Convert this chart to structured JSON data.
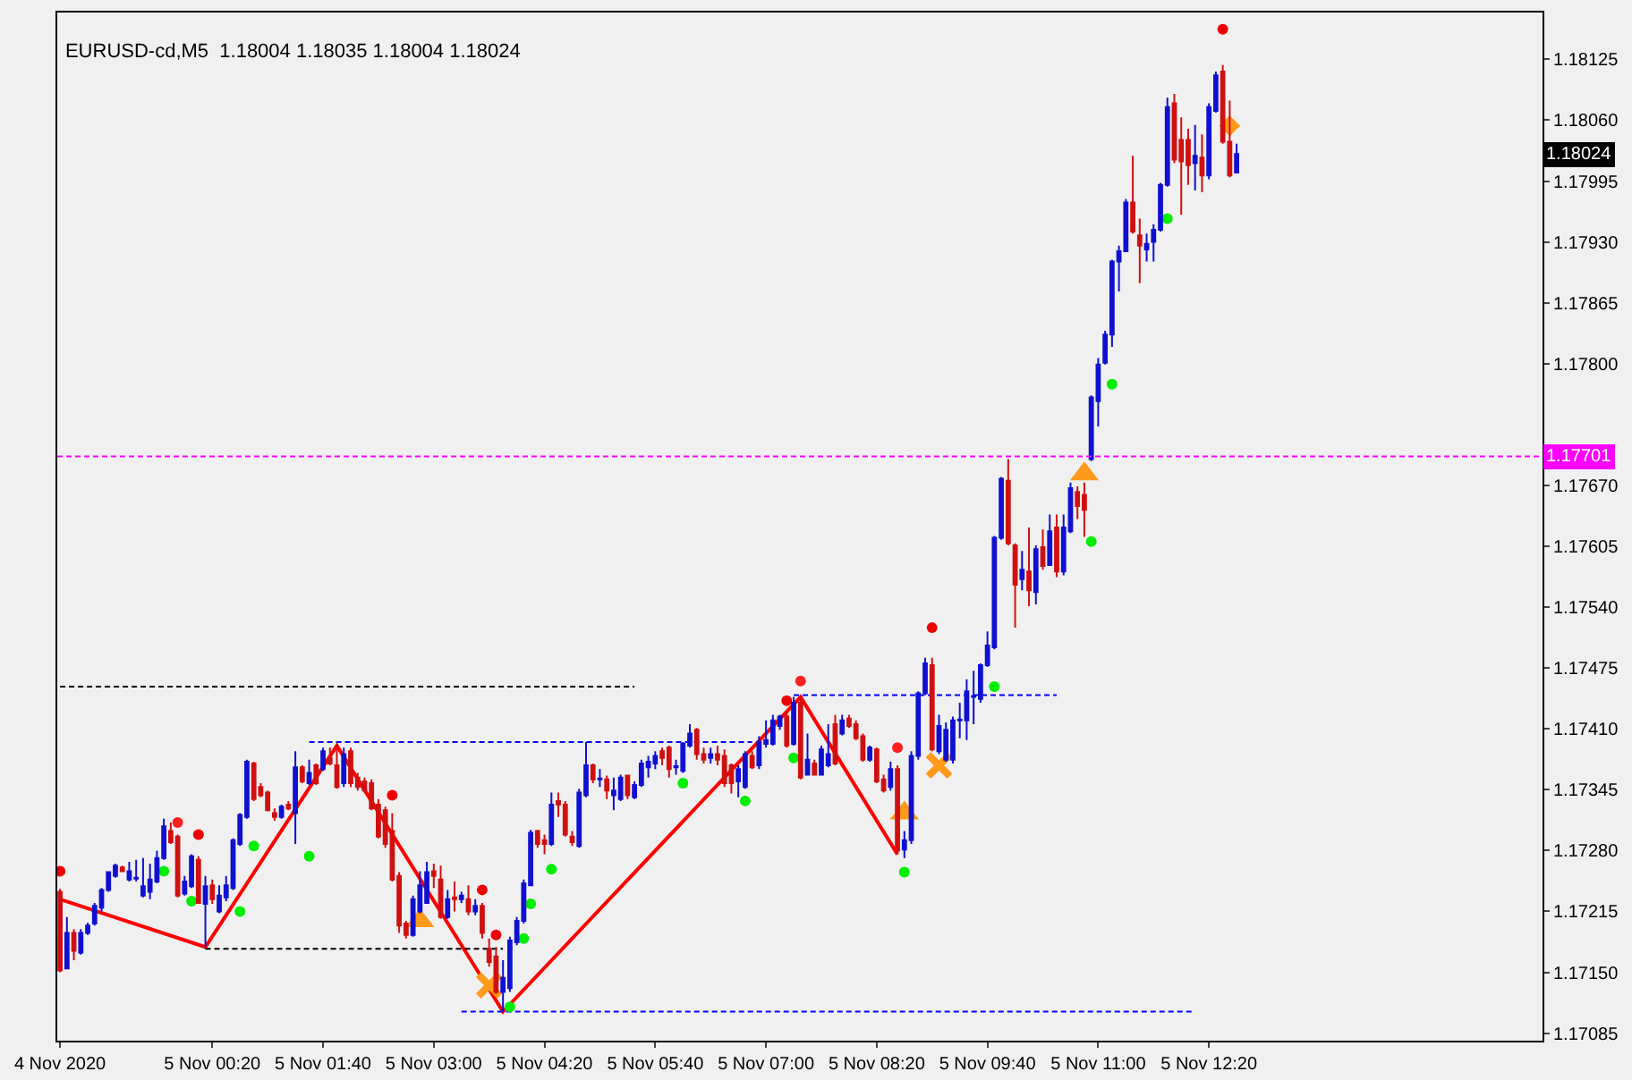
{
  "chart_data": {
    "type": "candlestick",
    "title": "EURUSD-cd,M5  1.18004 1.18035 1.18004 1.18024",
    "colors": [
      "#d01010",
      "#1010d0",
      "#d01010",
      "#1010d0",
      "#1010d0",
      "#1010d0",
      "#1010d0",
      "#1010d0",
      "#1010d0",
      "#d01010",
      "#1010d0",
      "#1010d0",
      "#1010d0",
      "#1010d0",
      "#1010d0",
      "#1010d0",
      "#d01010",
      "#d01010",
      "#1010d0",
      "#1010d0",
      "#d01010",
      "#1010d0",
      "#d01010",
      "#1010d0",
      "#1010d0",
      "#1010d0",
      "#1010d0",
      "#1010d0",
      "#d01010",
      "#d01010",
      "#d01010",
      "#d01010",
      "#1010d0",
      "#d01010",
      "#1010d0",
      "#d01010",
      "#1010d0",
      "#d01010",
      "#1010d0",
      "#d01010",
      "#d01010",
      "#1010d0",
      "#d01010",
      "#d01010",
      "#d01010",
      "#d01010",
      "#d01010",
      "#d01010",
      "#d01010",
      "#d01010",
      "#d01010",
      "#1010d0",
      "#1010d0",
      "#1010d0",
      "#d01010",
      "#d01010",
      "#1010d0",
      "#d01010",
      "#1010d0",
      "#d01010",
      "#1010d0",
      "#d01010",
      "#d01010",
      "#d01010",
      "#1010d0",
      "#1010d0",
      "#1010d0",
      "#1010d0",
      "#1010d0",
      "#d01010",
      "#d01010",
      "#1010d0",
      "#d01010",
      "#d01010",
      "#d01010",
      "#1010d0",
      "#1010d0",
      "#d01010",
      "#1010d0",
      "#d01010",
      "#1010d0",
      "#1010d0",
      "#d01010",
      "#1010d0",
      "#1010d0",
      "#1010d0",
      "#1010d0",
      "#d01010",
      "#d01010",
      "#1010d0",
      "#1010d0",
      "#1010d0",
      "#d01010",
      "#d01010",
      "#1010d0",
      "#d01010",
      "#d01010",
      "#d01010",
      "#1010d0",
      "#1010d0",
      "#d01010",
      "#1010d0",
      "#1010d0",
      "#1010d0",
      "#1010d0",
      "#d01010",
      "#1010d0",
      "#d01010",
      "#1010d0",
      "#d01010",
      "#1010d0",
      "#1010d0",
      "#d01010",
      "#1010d0",
      "#d01010",
      "#d01010",
      "#d01010",
      "#1010d0",
      "#d01010",
      "#d01010",
      "#1010d0",
      "#d01010",
      "#1010d0",
      "#1010d0",
      "#1010d0",
      "#1010d0",
      "#d01010",
      "#1010d0",
      "#1010d0",
      "#1010d0",
      "#1010d0",
      "#1010d0",
      "#1010d0",
      "#1010d0",
      "#1010d0",
      "#1010d0",
      "#1010d0",
      "#d01010",
      "#d01010",
      "#1010d0",
      "#d01010",
      "#1010d0",
      "#d01010",
      "#1010d0",
      "#d01010",
      "#1010d0",
      "#1010d0",
      "#d01010",
      "#d01010",
      "#1010d0",
      "#1010d0",
      "#1010d0",
      "#1010d0",
      "#1010d0",
      "#1010d0",
      "#d01010",
      "#d01010",
      "#1010d0",
      "#1010d0",
      "#1010d0",
      "#1010d0",
      "#d01010",
      "#d01010",
      "#d01010",
      "#1010d0",
      "#d01010",
      "#1010d0",
      "#1010d0",
      "#d01010",
      "#d01010",
      "#1010d0"
    ],
    "x": [
      "2020-11-04T22:30",
      "2020-11-04T22:35",
      "2020-11-04T22:40",
      "2020-11-04T22:45",
      "2020-11-04T22:50",
      "2020-11-04T22:55",
      "2020-11-04T23:00",
      "2020-11-04T23:05",
      "2020-11-04T23:10",
      "2020-11-04T23:15",
      "2020-11-04T23:20",
      "2020-11-04T23:25",
      "2020-11-04T23:30",
      "2020-11-04T23:35",
      "2020-11-04T23:40",
      "2020-11-04T23:45",
      "2020-11-04T23:50",
      "2020-11-04T23:55",
      "2020-11-05T00:00",
      "2020-11-05T00:05",
      "2020-11-05T00:10",
      "2020-11-05T00:15",
      "2020-11-05T00:20",
      "2020-11-05T00:25",
      "2020-11-05T00:30",
      "2020-11-05T00:35",
      "2020-11-05T00:40",
      "2020-11-05T00:45",
      "2020-11-05T00:50",
      "2020-11-05T00:55",
      "2020-11-05T01:00",
      "2020-11-05T01:05",
      "2020-11-05T01:10",
      "2020-11-05T01:15",
      "2020-11-05T01:20",
      "2020-11-05T01:25",
      "2020-11-05T01:30",
      "2020-11-05T01:35",
      "2020-11-05T01:40",
      "2020-11-05T01:45",
      "2020-11-05T01:50",
      "2020-11-05T01:55",
      "2020-11-05T02:00",
      "2020-11-05T02:05",
      "2020-11-05T02:10",
      "2020-11-05T02:15",
      "2020-11-05T02:20",
      "2020-11-05T02:25",
      "2020-11-05T02:30",
      "2020-11-05T02:35",
      "2020-11-05T02:40",
      "2020-11-05T02:45",
      "2020-11-05T02:50",
      "2020-11-05T02:55",
      "2020-11-05T03:00",
      "2020-11-05T03:05",
      "2020-11-05T03:10",
      "2020-11-05T03:15",
      "2020-11-05T03:20",
      "2020-11-05T03:25",
      "2020-11-05T03:30",
      "2020-11-05T03:35",
      "2020-11-05T03:40",
      "2020-11-05T03:45",
      "2020-11-05T03:50",
      "2020-11-05T03:55",
      "2020-11-05T04:00",
      "2020-11-05T04:05",
      "2020-11-05T04:10",
      "2020-11-05T04:15",
      "2020-11-05T04:20",
      "2020-11-05T04:25",
      "2020-11-05T04:30",
      "2020-11-05T04:35",
      "2020-11-05T04:40",
      "2020-11-05T04:45",
      "2020-11-05T04:50",
      "2020-11-05T04:55",
      "2020-11-05T05:00",
      "2020-11-05T05:05",
      "2020-11-05T05:10",
      "2020-11-05T05:15",
      "2020-11-05T05:20",
      "2020-11-05T05:25",
      "2020-11-05T05:30",
      "2020-11-05T05:35",
      "2020-11-05T05:40",
      "2020-11-05T05:45",
      "2020-11-05T05:50",
      "2020-11-05T05:55",
      "2020-11-05T06:00",
      "2020-11-05T06:05",
      "2020-11-05T06:10",
      "2020-11-05T06:15",
      "2020-11-05T06:20",
      "2020-11-05T06:25",
      "2020-11-05T06:30",
      "2020-11-05T06:35",
      "2020-11-05T06:40",
      "2020-11-05T06:45",
      "2020-11-05T06:50",
      "2020-11-05T06:55",
      "2020-11-05T07:00",
      "2020-11-05T07:05",
      "2020-11-05T07:10",
      "2020-11-05T07:15",
      "2020-11-05T07:20",
      "2020-11-05T07:25",
      "2020-11-05T07:30",
      "2020-11-05T07:35",
      "2020-11-05T07:40",
      "2020-11-05T07:45",
      "2020-11-05T07:50",
      "2020-11-05T07:55",
      "2020-11-05T08:00",
      "2020-11-05T08:05",
      "2020-11-05T08:10",
      "2020-11-05T08:15",
      "2020-11-05T08:20",
      "2020-11-05T08:25",
      "2020-11-05T08:30",
      "2020-11-05T08:35",
      "2020-11-05T08:40",
      "2020-11-05T08:45",
      "2020-11-05T08:50",
      "2020-11-05T08:55",
      "2020-11-05T09:00",
      "2020-11-05T09:05",
      "2020-11-05T09:10",
      "2020-11-05T09:15",
      "2020-11-05T09:20",
      "2020-11-05T09:25",
      "2020-11-05T09:30",
      "2020-11-05T09:35",
      "2020-11-05T09:40",
      "2020-11-05T09:45",
      "2020-11-05T09:50",
      "2020-11-05T09:55",
      "2020-11-05T10:00",
      "2020-11-05T10:05",
      "2020-11-05T10:10",
      "2020-11-05T10:15",
      "2020-11-05T10:20",
      "2020-11-05T10:25",
      "2020-11-05T10:30",
      "2020-11-05T10:35",
      "2020-11-05T10:40",
      "2020-11-05T10:45",
      "2020-11-05T10:50",
      "2020-11-05T10:55",
      "2020-11-05T11:00",
      "2020-11-05T11:05",
      "2020-11-05T11:10",
      "2020-11-05T11:15",
      "2020-11-05T11:20",
      "2020-11-05T11:25",
      "2020-11-05T11:30",
      "2020-11-05T11:35",
      "2020-11-05T11:40",
      "2020-11-05T11:45",
      "2020-11-05T11:50",
      "2020-11-05T11:55",
      "2020-11-05T12:00",
      "2020-11-05T12:05",
      "2020-11-05T12:10",
      "2020-11-05T12:15",
      "2020-11-05T12:20",
      "2020-11-05T12:25",
      "2020-11-05T12:30",
      "2020-11-05T12:35",
      "2020-11-05T12:40"
    ],
    "ohlc": [
      [
        1.17236,
        1.17239,
        1.1715,
        1.17152
      ],
      [
        1.17154,
        1.17209,
        1.17154,
        1.17192
      ],
      [
        1.17192,
        1.17196,
        1.17163,
        1.17173
      ],
      [
        1.17171,
        1.17196,
        1.17169,
        1.17192
      ],
      [
        1.17192,
        1.17203,
        1.1719,
        1.172
      ],
      [
        1.17202,
        1.17224,
        1.172,
        1.17221
      ],
      [
        1.17219,
        1.1724,
        1.17215,
        1.17238
      ],
      [
        1.17238,
        1.17258,
        1.17236,
        1.17257
      ],
      [
        1.17253,
        1.17266,
        1.17251,
        1.17264
      ],
      [
        1.17262,
        1.17264,
        1.17257,
        1.17258
      ],
      [
        1.17249,
        1.17268,
        1.17247,
        1.17258
      ],
      [
        1.1725,
        1.1727,
        1.17247,
        1.17251
      ],
      [
        1.17232,
        1.17272,
        1.1723,
        1.17242
      ],
      [
        1.17236,
        1.17266,
        1.17228,
        1.17249
      ],
      [
        1.17247,
        1.1728,
        1.17245,
        1.17272
      ],
      [
        1.17272,
        1.17314,
        1.1727,
        1.17306
      ],
      [
        1.17301,
        1.1731,
        1.17287,
        1.17289
      ],
      [
        1.17295,
        1.17297,
        1.1723,
        1.17232
      ],
      [
        1.17234,
        1.17253,
        1.17232,
        1.17247
      ],
      [
        1.17242,
        1.17276,
        1.1724,
        1.17274
      ],
      [
        1.1727,
        1.17274,
        1.17223,
        1.17224
      ],
      [
        1.17223,
        1.17253,
        1.17177,
        1.17242
      ],
      [
        1.17243,
        1.17249,
        1.17223,
        1.17228
      ],
      [
        1.17215,
        1.17243,
        1.17213,
        1.17232
      ],
      [
        1.1723,
        1.17253,
        1.17226,
        1.17243
      ],
      [
        1.1724,
        1.17293,
        1.17238,
        1.17291
      ],
      [
        1.17287,
        1.1732,
        1.17285,
        1.17318
      ],
      [
        1.17316,
        1.17377,
        1.17314,
        1.17375
      ],
      [
        1.17373,
        1.17375,
        1.17333,
        1.17335
      ],
      [
        1.17348,
        1.17352,
        1.17337,
        1.17339
      ],
      [
        1.17342,
        1.17344,
        1.17322,
        1.17323
      ],
      [
        1.1732,
        1.17325,
        1.17312,
        1.17316
      ],
      [
        1.17316,
        1.17329,
        1.17314,
        1.17327
      ],
      [
        1.17329,
        1.17333,
        1.17323,
        1.17325
      ],
      [
        1.1732,
        1.17386,
        1.17287,
        1.17369
      ],
      [
        1.17369,
        1.17371,
        1.17352,
        1.17354
      ],
      [
        1.17352,
        1.17377,
        1.1735,
        1.17363
      ],
      [
        1.17371,
        1.17373,
        1.1735,
        1.17352
      ],
      [
        1.17367,
        1.1739,
        1.17365,
        1.17386
      ],
      [
        1.17379,
        1.1739,
        1.17371,
        1.17373
      ],
      [
        1.17371,
        1.17394,
        1.17346,
        1.17348
      ],
      [
        1.17352,
        1.1739,
        1.17348,
        1.17383
      ],
      [
        1.17386,
        1.1739,
        1.17348,
        1.17352
      ],
      [
        1.17358,
        1.17363,
        1.17344,
        1.17348
      ],
      [
        1.17354,
        1.17358,
        1.17342,
        1.17344
      ],
      [
        1.17352,
        1.17356,
        1.17323,
        1.17325
      ],
      [
        1.17329,
        1.17335,
        1.17293,
        1.17295
      ],
      [
        1.17323,
        1.17327,
        1.17283,
        1.17287
      ],
      [
        1.17301,
        1.1732,
        1.17247,
        1.17249
      ],
      [
        1.17253,
        1.17257,
        1.17192,
        1.172
      ],
      [
        1.17202,
        1.17205,
        1.17186,
        1.1719
      ],
      [
        1.1719,
        1.17232,
        1.17188,
        1.17228
      ],
      [
        1.17215,
        1.17258,
        1.17213,
        1.17243
      ],
      [
        1.17224,
        1.17268,
        1.17223,
        1.17257
      ],
      [
        1.17258,
        1.17266,
        1.1724,
        1.17253
      ],
      [
        1.17249,
        1.17264,
        1.17207,
        1.17209
      ],
      [
        1.17209,
        1.17238,
        1.17207,
        1.17228
      ],
      [
        1.1723,
        1.17247,
        1.17215,
        1.17228
      ],
      [
        1.17228,
        1.17236,
        1.17224,
        1.17232
      ],
      [
        1.17228,
        1.17243,
        1.17211,
        1.17215
      ],
      [
        1.17215,
        1.17228,
        1.17211,
        1.17221
      ],
      [
        1.17221,
        1.17224,
        1.17186,
        1.17192
      ],
      [
        1.17175,
        1.17186,
        1.17156,
        1.17161
      ],
      [
        1.17167,
        1.17177,
        1.17127,
        1.17129
      ],
      [
        1.17129,
        1.17163,
        1.17108,
        1.17144
      ],
      [
        1.17133,
        1.17188,
        1.17129,
        1.17184
      ],
      [
        1.17182,
        1.17209,
        1.17179,
        1.17205
      ],
      [
        1.17205,
        1.17249,
        1.17202,
        1.17245
      ],
      [
        1.17243,
        1.17302,
        1.17242,
        1.17299
      ],
      [
        1.17301,
        1.17302,
        1.17283,
        1.17287
      ],
      [
        1.17291,
        1.17297,
        1.17276,
        1.17287
      ],
      [
        1.17287,
        1.17342,
        1.17285,
        1.17329
      ],
      [
        1.17333,
        1.17342,
        1.17316,
        1.17329
      ],
      [
        1.17329,
        1.17333,
        1.17295,
        1.17297
      ],
      [
        1.17295,
        1.17301,
        1.17285,
        1.17289
      ],
      [
        1.17285,
        1.17346,
        1.17283,
        1.17342
      ],
      [
        1.17339,
        1.17396,
        1.17337,
        1.17371
      ],
      [
        1.17371,
        1.17373,
        1.17352,
        1.17356
      ],
      [
        1.17356,
        1.17367,
        1.17348,
        1.17357
      ],
      [
        1.17356,
        1.1736,
        1.17335,
        1.17344
      ],
      [
        1.17339,
        1.17358,
        1.17323,
        1.17344
      ],
      [
        1.17335,
        1.17361,
        1.17333,
        1.17358
      ],
      [
        1.1736,
        1.17361,
        1.17335,
        1.17339
      ],
      [
        1.17337,
        1.17354,
        1.17335,
        1.1735
      ],
      [
        1.1735,
        1.17377,
        1.17348,
        1.17373
      ],
      [
        1.17369,
        1.17381,
        1.17358,
        1.17375
      ],
      [
        1.17373,
        1.17386,
        1.17367,
        1.17381
      ],
      [
        1.17386,
        1.1739,
        1.17371,
        1.17379
      ],
      [
        1.1739,
        1.17392,
        1.17358,
        1.17367
      ],
      [
        1.17369,
        1.17377,
        1.17361,
        1.1737
      ],
      [
        1.17365,
        1.17396,
        1.17363,
        1.17394
      ],
      [
        1.17392,
        1.17415,
        1.1739,
        1.17405
      ],
      [
        1.17409,
        1.17411,
        1.17377,
        1.17383
      ],
      [
        1.17383,
        1.1739,
        1.17373,
        1.17377
      ],
      [
        1.17379,
        1.1739,
        1.17373,
        1.17383
      ],
      [
        1.17383,
        1.17392,
        1.17371,
        1.17377
      ],
      [
        1.17381,
        1.17388,
        1.17348,
        1.17352
      ],
      [
        1.17371,
        1.17373,
        1.17341,
        1.17352
      ],
      [
        1.17354,
        1.17371,
        1.17337,
        1.17367
      ],
      [
        1.17348,
        1.17386,
        1.17346,
        1.17383
      ],
      [
        1.17381,
        1.17386,
        1.17367,
        1.17369
      ],
      [
        1.17371,
        1.17402,
        1.17367,
        1.17396
      ],
      [
        1.17394,
        1.17419,
        1.1739,
        1.17398
      ],
      [
        1.17394,
        1.17425,
        1.17392,
        1.17419
      ],
      [
        1.17413,
        1.17425,
        1.17409,
        1.17423
      ],
      [
        1.17423,
        1.17428,
        1.1739,
        1.17392
      ],
      [
        1.17394,
        1.17444,
        1.17392,
        1.17438
      ],
      [
        1.17438,
        1.17444,
        1.17356,
        1.17358
      ],
      [
        1.17361,
        1.17405,
        1.1736,
        1.17377
      ],
      [
        1.17373,
        1.17377,
        1.1736,
        1.17361
      ],
      [
        1.17361,
        1.17392,
        1.1736,
        1.17388
      ],
      [
        1.17371,
        1.17415,
        1.17369,
        1.17383
      ],
      [
        1.17415,
        1.17425,
        1.17371,
        1.17373
      ],
      [
        1.17405,
        1.17425,
        1.17403,
        1.17419
      ],
      [
        1.17421,
        1.17425,
        1.17411,
        1.17413
      ],
      [
        1.17415,
        1.17419,
        1.17398,
        1.174
      ],
      [
        1.17402,
        1.17405,
        1.17375,
        1.17377
      ],
      [
        1.17377,
        1.17392,
        1.17375,
        1.1739
      ],
      [
        1.17388,
        1.1739,
        1.17352,
        1.17354
      ],
      [
        1.17356,
        1.17361,
        1.17342,
        1.17344
      ],
      [
        1.17348,
        1.17375,
        1.17344,
        1.17367
      ],
      [
        1.17367,
        1.17371,
        1.17276,
        1.1728
      ],
      [
        1.17281,
        1.17301,
        1.17272,
        1.17291
      ],
      [
        1.17291,
        1.17386,
        1.17287,
        1.17381
      ],
      [
        1.17381,
        1.1745,
        1.17377,
        1.17448
      ],
      [
        1.17448,
        1.17486,
        1.17446,
        1.1748
      ],
      [
        1.17478,
        1.17486,
        1.17386,
        1.17388
      ],
      [
        1.17386,
        1.17425,
        1.17383,
        1.17413
      ],
      [
        1.17377,
        1.17417,
        1.17375,
        1.17409
      ],
      [
        1.17377,
        1.17423,
        1.17373,
        1.17419
      ],
      [
        1.17419,
        1.17438,
        1.174,
        1.1742
      ],
      [
        1.17419,
        1.17463,
        1.17398,
        1.1745
      ],
      [
        1.17444,
        1.17472,
        1.17415,
        1.17445
      ],
      [
        1.17442,
        1.1748,
        1.17438,
        1.17478
      ],
      [
        1.17478,
        1.17514,
        1.17476,
        1.17499
      ],
      [
        1.17497,
        1.17616,
        1.17495,
        1.17614
      ],
      [
        1.17614,
        1.17679,
        1.17612,
        1.17677
      ],
      [
        1.17675,
        1.17698,
        1.17606,
        1.17608
      ],
      [
        1.17606,
        1.17608,
        1.17518,
        1.17564
      ],
      [
        1.1757,
        1.176,
        1.17558,
        1.1758
      ],
      [
        1.17578,
        1.17625,
        1.17541,
        1.17558
      ],
      [
        1.17556,
        1.17606,
        1.17543,
        1.17602
      ],
      [
        1.17604,
        1.17623,
        1.1758,
        1.17584
      ],
      [
        1.17585,
        1.17639,
        1.17584,
        1.17621
      ],
      [
        1.17625,
        1.17639,
        1.17572,
        1.17578
      ],
      [
        1.17578,
        1.17639,
        1.17574,
        1.17625
      ],
      [
        1.17621,
        1.17673,
        1.17619,
        1.17667
      ],
      [
        1.17663,
        1.17669,
        1.17634,
        1.17648
      ],
      [
        1.1766,
        1.17673,
        1.17615,
        1.17644
      ],
      [
        1.17698,
        1.17766,
        1.17696,
        1.17764
      ],
      [
        1.1776,
        1.17806,
        1.17733,
        1.17799
      ],
      [
        1.17801,
        1.17835,
        1.17799,
        1.17831
      ],
      [
        1.17831,
        1.17911,
        1.17818,
        1.17909
      ],
      [
        1.17909,
        1.17926,
        1.17877,
        1.1792
      ],
      [
        1.1792,
        1.17976,
        1.17919,
        1.17972
      ],
      [
        1.17972,
        1.18022,
        1.17939,
        1.17941
      ],
      [
        1.17937,
        1.17955,
        1.17886,
        1.17926
      ],
      [
        1.17922,
        1.17939,
        1.17909,
        1.17928
      ],
      [
        1.1793,
        1.17949,
        1.17909,
        1.17943
      ],
      [
        1.17943,
        1.17993,
        1.17941,
        1.17991
      ],
      [
        1.17991,
        1.18084,
        1.17989,
        1.18074
      ],
      [
        1.18078,
        1.18088,
        1.18014,
        1.18018
      ],
      [
        1.18039,
        1.18063,
        1.17959,
        1.18016
      ],
      [
        1.18039,
        1.18051,
        1.17991,
        1.18012
      ],
      [
        1.18014,
        1.18055,
        1.17985,
        1.18022
      ],
      [
        1.1802,
        1.18045,
        1.17983,
        1.18001
      ],
      [
        1.18001,
        1.18078,
        1.17997,
        1.18074
      ],
      [
        1.1807,
        1.18112,
        1.18068,
        1.18108
      ],
      [
        1.18112,
        1.18119,
        1.18035,
        1.18037
      ],
      [
        1.18037,
        1.18081,
        1.17999,
        1.18001
      ],
      [
        1.18004,
        1.18035,
        1.18004,
        1.18024
      ]
    ],
    "series": [
      {
        "type": "line",
        "color": "#ff0000",
        "line_style": "solid",
        "x": [
          "2020-11-04T22:30",
          "2020-11-05T00:15",
          "2020-11-05T01:50",
          "2020-11-05T03:50",
          "2020-11-05T07:25",
          "2020-11-05T08:35"
        ],
        "values": [
          1.17228,
          1.17177,
          1.17392,
          1.17108,
          1.17444,
          1.17276
        ]
      },
      {
        "type": "line",
        "color": "#000000",
        "line_style": "dashed",
        "x": [
          "2020-11-04T22:30",
          "2020-11-05T05:25"
        ],
        "values": [
          1.17455,
          1.17455
        ]
      },
      {
        "type": "line",
        "color": "#0000ff",
        "line_style": "dashed",
        "x": [
          "2020-11-05T01:30",
          "2020-11-05T06:50"
        ],
        "values": [
          1.17396,
          1.17396
        ]
      },
      {
        "type": "line",
        "color": "#0000ff",
        "line_style": "dashed",
        "x": [
          "2020-11-05T07:20",
          "2020-11-05T10:30"
        ],
        "values": [
          1.17446,
          1.17446
        ]
      },
      {
        "type": "line",
        "color": "#000000",
        "line_style": "dashed",
        "x": [
          "2020-11-05T00:15",
          "2020-11-05T03:50"
        ],
        "values": [
          1.17175,
          1.17175
        ]
      },
      {
        "type": "line",
        "color": "#0000ff",
        "line_style": "dashed",
        "x": [
          "2020-11-05T03:20",
          "2020-11-05T12:10"
        ],
        "values": [
          1.17108,
          1.17108
        ]
      },
      {
        "type": "scatter",
        "color": "#00ee00",
        "marker": "circle",
        "x": [
          "2020-11-04T23:45",
          "2020-11-05T00:05",
          "2020-11-05T00:40",
          "2020-11-05T00:50",
          "2020-11-05T01:30",
          "2020-11-05T03:55",
          "2020-11-05T04:05",
          "2020-11-05T04:10",
          "2020-11-05T04:25",
          "2020-11-05T06:00",
          "2020-11-05T06:45",
          "2020-11-05T07:20",
          "2020-11-05T08:40",
          "2020-11-05T09:45",
          "2020-11-05T10:55",
          "2020-11-05T11:10",
          "2020-11-05T11:50"
        ],
        "values": [
          1.17258,
          1.17226,
          1.17215,
          1.17285,
          1.17274,
          1.17113,
          1.17186,
          1.17223,
          1.1726,
          1.17352,
          1.17333,
          1.17379,
          1.17257,
          1.17455,
          1.1761,
          1.17778,
          1.17955
        ]
      },
      {
        "type": "scatter",
        "color": "#ee0000",
        "marker": "circle",
        "x": [
          "2020-11-04T22:30",
          "2020-11-05T00:10",
          "2020-11-05T02:30",
          "2020-11-05T03:35",
          "2020-11-05T03:45",
          "2020-11-05T07:15",
          "2020-11-05T09:00",
          "2020-11-05T12:30"
        ],
        "values": [
          1.17258,
          1.17297,
          1.17339,
          1.17238,
          1.1719,
          1.1744,
          1.17518,
          1.18157
        ]
      },
      {
        "type": "scatter",
        "color": "#ff2020",
        "marker": "circle",
        "x": [
          "2020-11-04T23:55",
          "2020-11-05T07:25",
          "2020-11-05T08:35"
        ],
        "values": [
          1.1731,
          1.17461,
          1.1739
        ]
      },
      {
        "type": "scatter",
        "color": "#ff9a1a",
        "marker": "triangle",
        "x": [
          "2020-11-05T02:50",
          "2020-11-05T08:40",
          "2020-11-05T10:50"
        ],
        "values": [
          1.17205,
          1.1732,
          1.17682
        ]
      },
      {
        "type": "scatter",
        "color": "#ff9a1a",
        "marker": "cross",
        "x": [
          "2020-11-05T03:40",
          "2020-11-05T09:05"
        ],
        "values": [
          1.17136,
          1.17371
        ]
      },
      {
        "type": "scatter",
        "color": "#ff9a1a",
        "marker": "diamond",
        "x": [
          "2020-11-05T12:35"
        ],
        "values": [
          1.18054
        ]
      }
    ],
    "ref_lines": [
      {
        "axis": "y",
        "value": 1.17701,
        "label": "1.17701",
        "color": "#ff00ff",
        "line_style": "dashed"
      }
    ],
    "annotations": [
      {
        "text": "1.18024",
        "y": 1.18024
      }
    ],
    "xlim": [
      "2020-11-04T22:28",
      "2020-11-05T16:21"
    ],
    "xticks": [
      {
        "value": "2020-11-04T22:30",
        "label": "4 Nov 2020"
      },
      {
        "value": "2020-11-05T00:20",
        "label": "5 Nov 00:20"
      },
      {
        "value": "2020-11-05T01:40",
        "label": "5 Nov 01:40"
      },
      {
        "value": "2020-11-05T03:00",
        "label": "5 Nov 03:00"
      },
      {
        "value": "2020-11-05T04:20",
        "label": "5 Nov 04:20"
      },
      {
        "value": "2020-11-05T05:40",
        "label": "5 Nov 05:40"
      },
      {
        "value": "2020-11-05T07:00",
        "label": "5 Nov 07:00"
      },
      {
        "value": "2020-11-05T08:20",
        "label": "5 Nov 08:20"
      },
      {
        "value": "2020-11-05T09:40",
        "label": "5 Nov 09:40"
      },
      {
        "value": "2020-11-05T11:00",
        "label": "5 Nov 11:00"
      },
      {
        "value": "2020-11-05T12:20",
        "label": "5 Nov 12:20"
      }
    ],
    "ylim": [
      1.17077,
      1.18175
    ],
    "yticks": [
      1.17085,
      {
        "value": 1.1715,
        "label": "1.17150"
      },
      1.17215,
      {
        "value": 1.1728,
        "label": "1.17280"
      },
      1.17345,
      {
        "value": 1.1741,
        "label": "1.17410"
      },
      1.17475,
      {
        "value": 1.1754,
        "label": "1.17540"
      },
      1.17605,
      {
        "value": 1.1767,
        "label": "1.17670"
      },
      {
        "value": 1.178,
        "label": "1.17800"
      },
      1.17865,
      {
        "value": 1.1793,
        "label": "1.17930"
      },
      1.17995,
      {
        "value": 1.1806,
        "label": "1.18060"
      },
      1.18125
    ],
    "grid": false
  }
}
